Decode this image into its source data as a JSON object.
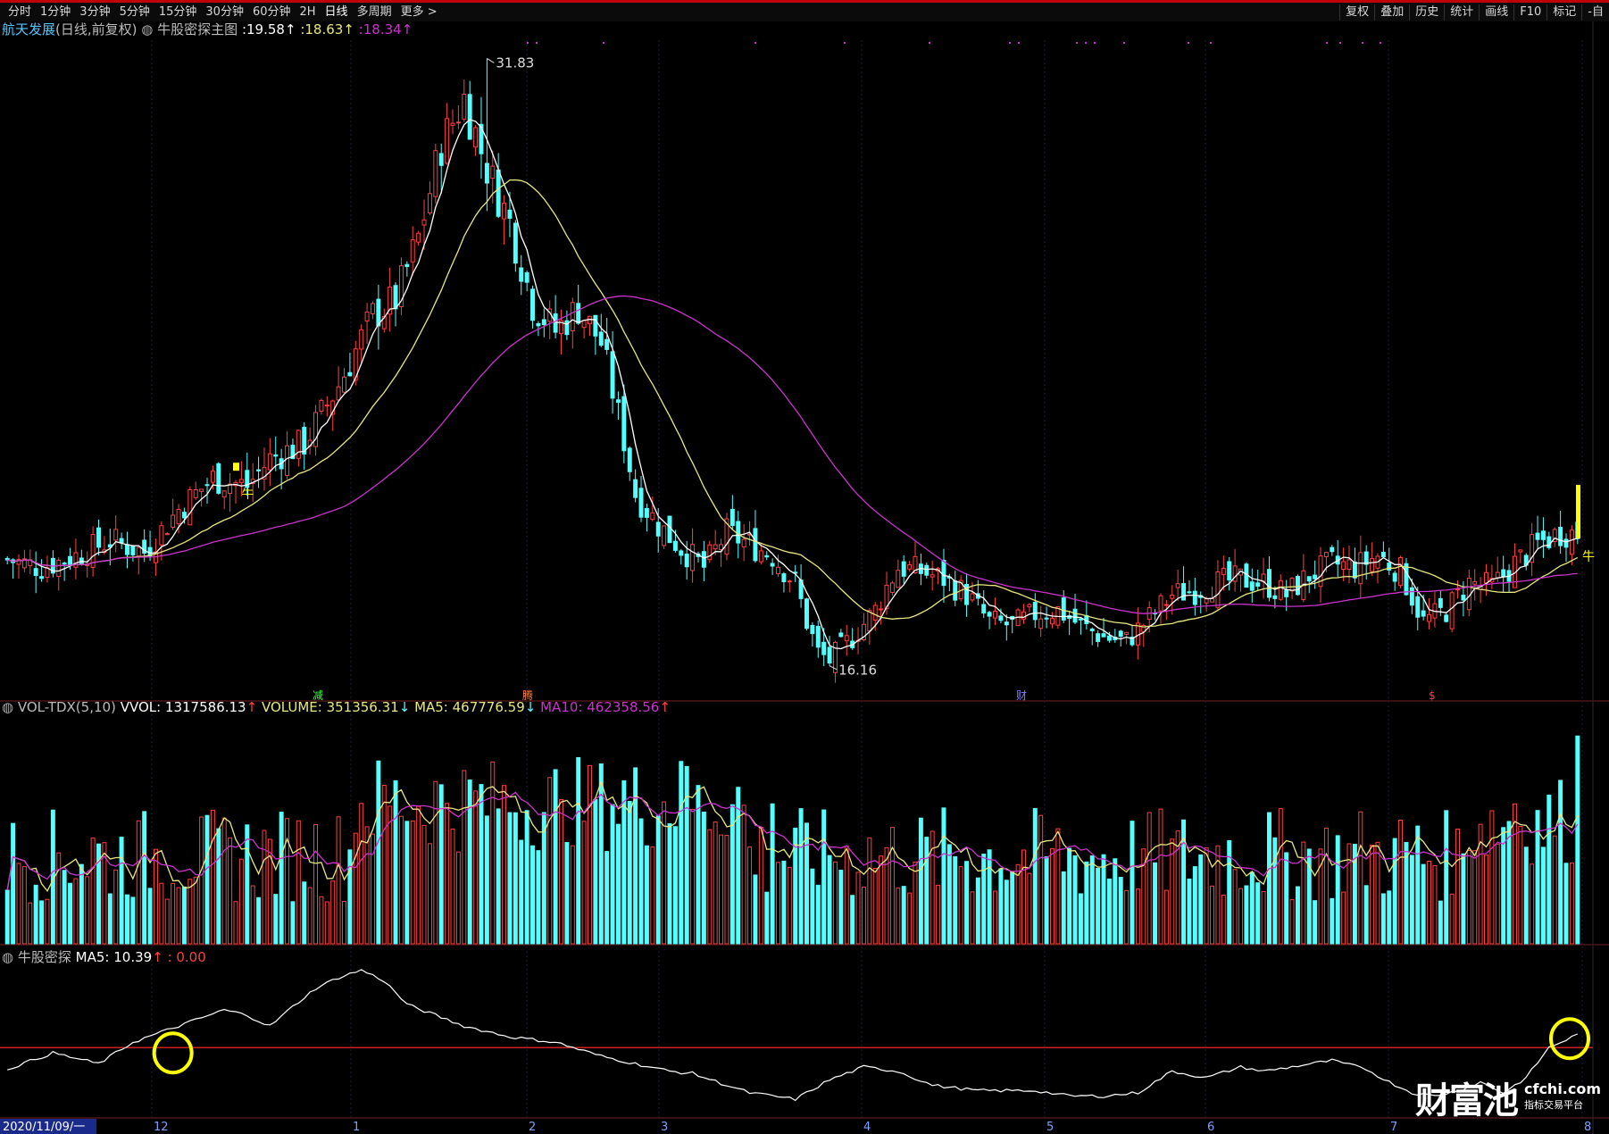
{
  "toolbar": {
    "periods": [
      "分时",
      "1分钟",
      "3分钟",
      "5分钟",
      "15分钟",
      "30分钟",
      "60分钟",
      "2H",
      "日线",
      "多周期",
      "更多 >"
    ],
    "active": "日线",
    "right_tools": [
      "复权",
      "叠加",
      "历史",
      "统计",
      "画线",
      "F10",
      "标记",
      "-自"
    ]
  },
  "main_panel": {
    "stock_name": "航天发展",
    "period_label": "(日线,前复权)",
    "indicator_name": "牛股密探主图",
    "values": [
      ":19.58↑",
      ":18.63↑",
      ":18.34↑"
    ],
    "high_label": "31.83",
    "low_label": "16.16",
    "signal_label": "牛",
    "event_markers": [
      "减",
      "腾",
      "财",
      "$"
    ]
  },
  "volume_panel": {
    "indicator": "VOL-TDX(5,10)",
    "vvol": "VVOL: 1317586.13",
    "volume": "VOLUME: 351356.31",
    "ma5": "MA5: 467776.59",
    "ma10": "MA10: 462358.56"
  },
  "osc_panel": {
    "indicator": "牛股密探",
    "ma5": "MA5: 10.39",
    "value": ": 0.00"
  },
  "date_axis": {
    "start": "2020/11/09/一",
    "months": [
      "12",
      "1",
      "2",
      "3",
      "4",
      "5",
      "6",
      "7",
      "8"
    ]
  },
  "watermark": {
    "big": "财富池",
    "site": "cfchi.com",
    "sub": "指标交易平台"
  },
  "colors": {
    "up": "#ff4040",
    "down": "#54ffff",
    "ma1": "#ffffff",
    "ma2": "#e8e880",
    "ma3": "#cc33cc",
    "zero_line": "#cc2020",
    "highlight": "#ffff00"
  },
  "chart_data": {
    "type": "candlestick",
    "x_start": "2020-11-09",
    "y_range": [
      16.16,
      31.83
    ],
    "price_extremes": {
      "high": 31.83,
      "low": 16.16
    },
    "ma_last": {
      "ma1": 19.58,
      "ma2": 18.63,
      "ma3": 18.34
    },
    "volume_last": {
      "volume": 351356.31,
      "ma5": 467776.59,
      "ma10": 462358.56,
      "vvol": 1317586.13
    },
    "oscillator_last": {
      "ma5": 10.39,
      "signal": 0.0
    },
    "price_path": [
      [
        0,
        18.9
      ],
      [
        6,
        18.7
      ],
      [
        12,
        19.0
      ],
      [
        18,
        19.4
      ],
      [
        24,
        19.1
      ],
      [
        30,
        20.2
      ],
      [
        36,
        21.0
      ],
      [
        42,
        20.8
      ],
      [
        46,
        21.5
      ],
      [
        52,
        21.9
      ],
      [
        58,
        23.4
      ],
      [
        64,
        25.2
      ],
      [
        68,
        25.6
      ],
      [
        72,
        27.2
      ],
      [
        76,
        29.6
      ],
      [
        80,
        30.8
      ],
      [
        84,
        29.0
      ],
      [
        88,
        27.6
      ],
      [
        92,
        25.5
      ],
      [
        96,
        24.8
      ],
      [
        100,
        25.4
      ],
      [
        104,
        24.5
      ],
      [
        108,
        22.0
      ],
      [
        110,
        20.6
      ],
      [
        114,
        19.8
      ],
      [
        118,
        19.2
      ],
      [
        122,
        18.7
      ],
      [
        126,
        19.6
      ],
      [
        130,
        19.3
      ],
      [
        134,
        19.0
      ],
      [
        138,
        18.3
      ],
      [
        140,
        17.3
      ],
      [
        142,
        16.5
      ],
      [
        144,
        16.3
      ],
      [
        148,
        16.9
      ],
      [
        152,
        17.6
      ],
      [
        154,
        18.2
      ],
      [
        156,
        18.7
      ],
      [
        160,
        18.6
      ],
      [
        164,
        18.4
      ],
      [
        168,
        18.0
      ],
      [
        172,
        17.3
      ],
      [
        176,
        17.2
      ],
      [
        180,
        17.5
      ],
      [
        184,
        17.6
      ],
      [
        188,
        17.2
      ],
      [
        192,
        16.9
      ],
      [
        196,
        16.8
      ],
      [
        200,
        17.4
      ],
      [
        204,
        18.0
      ],
      [
        208,
        18.1
      ],
      [
        212,
        18.3
      ],
      [
        216,
        18.4
      ],
      [
        220,
        18.3
      ],
      [
        224,
        18.0
      ],
      [
        228,
        18.5
      ],
      [
        232,
        18.8
      ],
      [
        236,
        18.7
      ],
      [
        240,
        19.0
      ],
      [
        244,
        18.6
      ],
      [
        248,
        17.3
      ],
      [
        252,
        17.6
      ],
      [
        256,
        18.3
      ],
      [
        260,
        18.2
      ],
      [
        264,
        18.8
      ],
      [
        268,
        19.3
      ],
      [
        272,
        19.6
      ],
      [
        275,
        19.58
      ]
    ],
    "osc_path": [
      [
        0,
        0.3
      ],
      [
        8,
        0.45
      ],
      [
        16,
        0.35
      ],
      [
        22,
        0.55
      ],
      [
        30,
        0.7
      ],
      [
        38,
        0.85
      ],
      [
        42,
        0.8
      ],
      [
        46,
        0.7
      ],
      [
        50,
        0.88
      ],
      [
        54,
        1.05
      ],
      [
        58,
        1.15
      ],
      [
        62,
        1.22
      ],
      [
        66,
        1.12
      ],
      [
        70,
        0.9
      ],
      [
        74,
        0.82
      ],
      [
        80,
        0.7
      ],
      [
        88,
        0.6
      ],
      [
        96,
        0.55
      ],
      [
        104,
        0.42
      ],
      [
        110,
        0.35
      ],
      [
        116,
        0.28
      ],
      [
        120,
        0.26
      ],
      [
        126,
        0.15
      ],
      [
        130,
        0.08
      ],
      [
        134,
        0.05
      ],
      [
        138,
        0.02
      ],
      [
        144,
        0.2
      ],
      [
        150,
        0.32
      ],
      [
        156,
        0.28
      ],
      [
        162,
        0.15
      ],
      [
        170,
        0.1
      ],
      [
        180,
        0.1
      ],
      [
        186,
        0.05
      ],
      [
        192,
        0.05
      ],
      [
        198,
        0.08
      ],
      [
        204,
        0.28
      ],
      [
        210,
        0.22
      ],
      [
        216,
        0.32
      ],
      [
        220,
        0.28
      ],
      [
        226,
        0.33
      ],
      [
        232,
        0.38
      ],
      [
        238,
        0.3
      ],
      [
        242,
        0.18
      ],
      [
        246,
        0.08
      ],
      [
        250,
        0.05
      ],
      [
        254,
        0.1
      ],
      [
        258,
        0.18
      ],
      [
        262,
        0.08
      ],
      [
        266,
        0.22
      ],
      [
        270,
        0.5
      ],
      [
        275,
        0.62
      ]
    ],
    "osc_marker_x": [
      29,
      273
    ]
  }
}
